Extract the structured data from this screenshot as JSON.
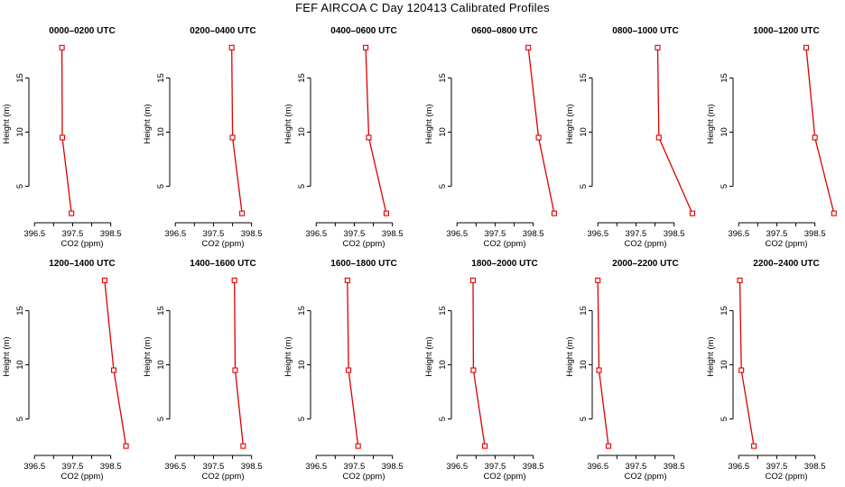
{
  "title": "FEF AIRCOA C  Day 120413  Calibrated Profiles",
  "colors": {
    "series": "#dd0000",
    "axis": "#000000"
  },
  "chart_data": [
    {
      "type": "line",
      "title": "0000–0200 UTC",
      "xlabel": "CO2 (ppm)",
      "ylabel": "Height (m)",
      "xlim": [
        396.4,
        399.1
      ],
      "ylim": [
        1.8,
        18.7
      ],
      "xticks": [
        396.5,
        397.5,
        398.5
      ],
      "yticks": [
        5,
        10,
        15
      ],
      "x": [
        397.22,
        397.23,
        397.47
      ],
      "y": [
        17.8,
        9.5,
        2.5
      ]
    },
    {
      "type": "line",
      "title": "0200–0400 UTC",
      "xlabel": "CO2 (ppm)",
      "ylabel": "Height (m)",
      "xlim": [
        396.4,
        399.1
      ],
      "ylim": [
        1.8,
        18.7
      ],
      "xticks": [
        396.5,
        397.5,
        398.5
      ],
      "yticks": [
        5,
        10,
        15
      ],
      "x": [
        397.98,
        398.0,
        398.25
      ],
      "y": [
        17.8,
        9.5,
        2.5
      ]
    },
    {
      "type": "line",
      "title": "0400–0600 UTC",
      "xlabel": "CO2 (ppm)",
      "ylabel": "Height (m)",
      "xlim": [
        396.4,
        399.1
      ],
      "ylim": [
        1.8,
        18.7
      ],
      "xticks": [
        396.5,
        397.5,
        398.5
      ],
      "yticks": [
        5,
        10,
        15
      ],
      "x": [
        397.8,
        397.88,
        398.34
      ],
      "y": [
        17.8,
        9.5,
        2.5
      ]
    },
    {
      "type": "line",
      "title": "0600–0800 UTC",
      "xlabel": "CO2 (ppm)",
      "ylabel": "Height (m)",
      "xlim": [
        396.4,
        399.1
      ],
      "ylim": [
        1.8,
        18.7
      ],
      "xticks": [
        396.5,
        397.5,
        398.5
      ],
      "yticks": [
        5,
        10,
        15
      ],
      "x": [
        398.37,
        398.64,
        399.05
      ],
      "y": [
        17.8,
        9.5,
        2.5
      ]
    },
    {
      "type": "line",
      "title": "0800–1000 UTC",
      "xlabel": "CO2 (ppm)",
      "ylabel": "Height (m)",
      "xlim": [
        396.4,
        399.1
      ],
      "ylim": [
        1.8,
        18.7
      ],
      "xticks": [
        396.5,
        397.5,
        398.5
      ],
      "yticks": [
        5,
        10,
        15
      ],
      "x": [
        398.07,
        398.1,
        398.98
      ],
      "y": [
        17.8,
        9.5,
        2.5
      ]
    },
    {
      "type": "line",
      "title": "1000–1200 UTC",
      "xlabel": "CO2 (ppm)",
      "ylabel": "Height (m)",
      "xlim": [
        396.4,
        399.1
      ],
      "ylim": [
        1.8,
        18.7
      ],
      "xticks": [
        396.5,
        397.5,
        398.5
      ],
      "yticks": [
        5,
        10,
        15
      ],
      "x": [
        398.27,
        398.5,
        399.0
      ],
      "y": [
        17.8,
        9.5,
        2.5
      ]
    },
    {
      "type": "line",
      "title": "1200–1400 UTC",
      "xlabel": "CO2 (ppm)",
      "ylabel": "Height (m)",
      "xlim": [
        396.4,
        399.1
      ],
      "ylim": [
        1.8,
        18.7
      ],
      "xticks": [
        396.5,
        397.5,
        398.5
      ],
      "yticks": [
        5,
        10,
        15
      ],
      "x": [
        398.34,
        398.58,
        398.9
      ],
      "y": [
        17.8,
        9.5,
        2.5
      ]
    },
    {
      "type": "line",
      "title": "1400–1600 UTC",
      "xlabel": "CO2 (ppm)",
      "ylabel": "Height (m)",
      "xlim": [
        396.4,
        399.1
      ],
      "ylim": [
        1.8,
        18.7
      ],
      "xticks": [
        396.5,
        397.5,
        398.5
      ],
      "yticks": [
        5,
        10,
        15
      ],
      "x": [
        398.05,
        398.07,
        398.28
      ],
      "y": [
        17.8,
        9.5,
        2.5
      ]
    },
    {
      "type": "line",
      "title": "1600–1800 UTC",
      "xlabel": "CO2 (ppm)",
      "ylabel": "Height (m)",
      "xlim": [
        396.4,
        399.1
      ],
      "ylim": [
        1.8,
        18.7
      ],
      "xticks": [
        396.5,
        397.5,
        398.5
      ],
      "yticks": [
        5,
        10,
        15
      ],
      "x": [
        397.32,
        397.35,
        397.6
      ],
      "y": [
        17.8,
        9.5,
        2.5
      ]
    },
    {
      "type": "line",
      "title": "1800–2000 UTC",
      "xlabel": "CO2 (ppm)",
      "ylabel": "Height (m)",
      "xlim": [
        396.4,
        399.1
      ],
      "ylim": [
        1.8,
        18.7
      ],
      "xticks": [
        396.5,
        397.5,
        398.5
      ],
      "yticks": [
        5,
        10,
        15
      ],
      "x": [
        396.92,
        396.93,
        397.23
      ],
      "y": [
        17.8,
        9.5,
        2.5
      ]
    },
    {
      "type": "line",
      "title": "2000–2200 UTC",
      "xlabel": "CO2 (ppm)",
      "ylabel": "Height (m)",
      "xlim": [
        396.4,
        399.1
      ],
      "ylim": [
        1.8,
        18.7
      ],
      "xticks": [
        396.5,
        397.5,
        398.5
      ],
      "yticks": [
        5,
        10,
        15
      ],
      "x": [
        396.5,
        396.53,
        396.78
      ],
      "y": [
        17.8,
        9.5,
        2.5
      ]
    },
    {
      "type": "line",
      "title": "2200–2400 UTC",
      "xlabel": "CO2 (ppm)",
      "ylabel": "Height (m)",
      "xlim": [
        396.4,
        399.1
      ],
      "ylim": [
        1.8,
        18.7
      ],
      "xticks": [
        396.5,
        397.5,
        398.5
      ],
      "yticks": [
        5,
        10,
        15
      ],
      "x": [
        396.53,
        396.57,
        396.9
      ],
      "y": [
        17.8,
        9.5,
        2.5
      ]
    }
  ]
}
